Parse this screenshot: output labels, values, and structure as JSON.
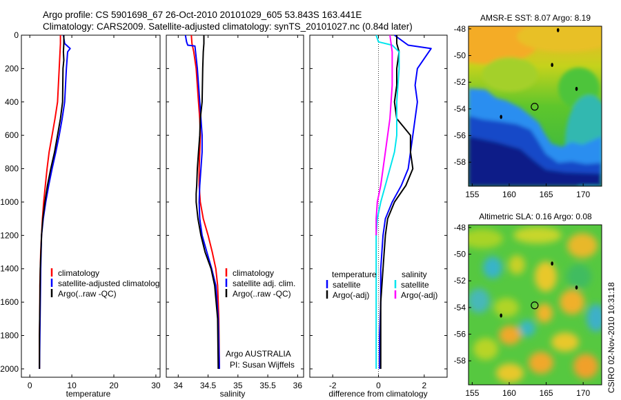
{
  "figure": {
    "title_line1": "Argo profile: CS 5901698_67 26-Oct-2010 20101029_605 53.843S 163.441E",
    "title_line2": "Climatology: CARS2009. Satellite-adjusted climatology: synTS_20101027.nc (0.84d later)",
    "side_label": "CSIRO 02-Nov-2010 10:31:18",
    "institution_line1": "Argo AUSTRALIA",
    "institution_line2": "PI: Susan Wijffels"
  },
  "colors": {
    "climatology": "#ff0000",
    "satellite": "#0000ff",
    "argo": "#000000",
    "sat_diff_salinity": "#00e5ee",
    "argo_diff_salinity": "#ff00ff"
  },
  "chart_data": [
    {
      "id": "temperature",
      "type": "line",
      "xlabel": "temperature",
      "ylabel": "",
      "xlim": [
        -2,
        31
      ],
      "ylim": [
        2050,
        0
      ],
      "xticks": [
        0,
        10,
        20,
        30
      ],
      "yticks": [
        0,
        200,
        400,
        600,
        800,
        1000,
        1200,
        1400,
        1600,
        1800,
        2000
      ],
      "legend": [
        {
          "label": "climatology",
          "color": "#ff0000"
        },
        {
          "label": "satellite-adjusted climatolog",
          "color": "#0000ff"
        },
        {
          "label": "Argo(..raw -QC)",
          "color": "#000000"
        }
      ],
      "series": [
        {
          "name": "climatology",
          "color": "#ff0000",
          "x": [
            7.3,
            7.3,
            7.2,
            7.0,
            6.6,
            6.0,
            5.3,
            4.6,
            4.1,
            3.7,
            3.3,
            3.0,
            2.8,
            2.6,
            2.5,
            2.4,
            2.4,
            2.3,
            2.3
          ],
          "y": [
            0,
            50,
            100,
            200,
            400,
            500,
            600,
            700,
            800,
            900,
            1000,
            1100,
            1200,
            1300,
            1400,
            1500,
            1600,
            1800,
            2000
          ]
        },
        {
          "name": "satellite-adjusted climatolog",
          "color": "#0000ff",
          "x": [
            8.0,
            8.3,
            9.6,
            9.0,
            8.7,
            8.3,
            7.7,
            7.0,
            6.2,
            5.3,
            4.5,
            3.8,
            3.2,
            2.8,
            2.6,
            2.5,
            2.4,
            2.3
          ],
          "y": [
            0,
            50,
            80,
            100,
            200,
            400,
            500,
            600,
            700,
            800,
            900,
            1000,
            1100,
            1200,
            1400,
            1600,
            1800,
            2000
          ]
        },
        {
          "name": "Argo(..raw -QC)",
          "color": "#000000",
          "x": [
            8.1,
            8.1,
            8.0,
            8.1,
            7.9,
            7.8,
            7.3,
            6.6,
            5.9,
            5.0,
            4.2,
            3.6,
            3.1,
            2.8,
            2.5,
            2.4,
            2.3,
            2.3
          ],
          "y": [
            0,
            50,
            100,
            150,
            200,
            400,
            500,
            600,
            700,
            800,
            900,
            1000,
            1100,
            1200,
            1400,
            1600,
            1800,
            2000
          ]
        }
      ]
    },
    {
      "id": "salinity",
      "type": "line",
      "xlabel": "salinity",
      "ylabel": "",
      "xlim": [
        33.8,
        36.1
      ],
      "ylim": [
        2050,
        0
      ],
      "xticks": [
        34,
        34.5,
        35,
        35.5,
        36
      ],
      "xtick_labels": [
        "34",
        "34.5",
        "35",
        "35.5",
        "36"
      ],
      "legend": [
        {
          "label": "climatology",
          "color": "#ff0000"
        },
        {
          "label": "satellite adj. clim.",
          "color": "#0000ff"
        },
        {
          "label": "Argo(..raw -QC)",
          "color": "#000000"
        }
      ],
      "series": [
        {
          "name": "climatology",
          "color": "#ff0000",
          "x": [
            34.22,
            34.23,
            34.26,
            34.3,
            34.34,
            34.36,
            34.37,
            34.36,
            34.35,
            34.35,
            34.37,
            34.42,
            34.5,
            34.57,
            34.63,
            34.66,
            34.68,
            34.69
          ],
          "y": [
            0,
            50,
            100,
            200,
            400,
            500,
            600,
            700,
            800,
            900,
            1000,
            1100,
            1200,
            1300,
            1400,
            1500,
            1700,
            2000
          ]
        },
        {
          "name": "satellite adj. clim.",
          "color": "#0000ff",
          "x": [
            34.12,
            34.14,
            34.16,
            34.28,
            34.32,
            34.36,
            34.38,
            34.4,
            34.4,
            34.38,
            34.36,
            34.35,
            34.36,
            34.4,
            34.48,
            34.56,
            34.63,
            34.67,
            34.69
          ],
          "y": [
            0,
            40,
            60,
            65,
            200,
            400,
            500,
            600,
            700,
            800,
            900,
            1000,
            1100,
            1200,
            1300,
            1400,
            1500,
            1700,
            2000
          ]
        },
        {
          "name": "Argo(..raw -QC)",
          "color": "#000000",
          "x": [
            34.43,
            34.43,
            34.42,
            34.41,
            34.4,
            34.37,
            34.36,
            34.34,
            34.32,
            34.31,
            34.3,
            34.3,
            34.33,
            34.38,
            34.45,
            34.55,
            34.61,
            34.66,
            34.67
          ],
          "y": [
            0,
            50,
            100,
            200,
            400,
            500,
            600,
            700,
            800,
            900,
            950,
            1000,
            1100,
            1200,
            1300,
            1400,
            1500,
            1700,
            2000
          ]
        }
      ]
    },
    {
      "id": "difference",
      "type": "line",
      "xlabel": "difference from climatology",
      "ylabel": "",
      "xlim": [
        -3,
        3
      ],
      "ylim": [
        2050,
        0
      ],
      "xticks": [
        -2,
        0,
        2
      ],
      "xtick_labels": [
        "-2",
        "0",
        "2"
      ],
      "legend_left_title": "temperature",
      "legend_right_title": "salinity",
      "legend": [
        {
          "label": "satellite",
          "color": "#0000ff",
          "column": "left"
        },
        {
          "label": "Argo(-adj)",
          "color": "#000000",
          "column": "left"
        },
        {
          "label": "satellite",
          "color": "#00e5ee",
          "column": "right"
        },
        {
          "label": "Argo(-adj)",
          "color": "#ff00ff",
          "column": "right"
        }
      ],
      "series": [
        {
          "name": "temperature satellite",
          "color": "#0000ff",
          "x": [
            0.7,
            1.0,
            1.3,
            2.3,
            2.2,
            1.7,
            1.6,
            1.7,
            1.6,
            1.5,
            1.3,
            1.0,
            0.6,
            0.3,
            0.2,
            0.1,
            0.1,
            0.05,
            0.05
          ],
          "y": [
            0,
            30,
            60,
            80,
            100,
            200,
            300,
            400,
            500,
            600,
            800,
            900,
            1000,
            1100,
            1200,
            1400,
            1600,
            1800,
            2000
          ]
        },
        {
          "name": "temperature Argo(-adj)",
          "color": "#000000",
          "x": [
            0.8,
            0.8,
            0.9,
            0.8,
            0.8,
            0.7,
            0.8,
            1.1,
            1.4,
            1.4,
            1.5,
            1.2,
            0.7,
            0.4,
            0.3,
            0.2,
            0.1,
            0.1,
            0.1
          ],
          "y": [
            0,
            50,
            100,
            200,
            300,
            400,
            500,
            550,
            600,
            700,
            800,
            900,
            1000,
            1100,
            1200,
            1400,
            1600,
            1800,
            2000
          ]
        },
        {
          "name": "salinity satellite",
          "color": "#00e5ee",
          "x": [
            -0.1,
            0.0,
            0.6,
            0.9,
            0.9,
            0.8,
            0.8,
            0.7,
            0.5,
            0.3,
            0.1,
            -0.05,
            -0.1,
            -0.1,
            -0.1,
            -0.1
          ],
          "y": [
            0,
            40,
            60,
            100,
            200,
            400,
            600,
            700,
            800,
            900,
            1000,
            1100,
            1200,
            1400,
            1700,
            2000
          ]
        },
        {
          "name": "salinity Argo(-adj)",
          "color": "#ff00ff",
          "x": [
            0.5,
            0.6,
            0.6,
            0.5,
            0.3,
            0.1,
            -0.05,
            -0.1,
            -0.1
          ],
          "y": [
            0,
            100,
            300,
            500,
            700,
            900,
            1000,
            1100,
            1200
          ]
        }
      ]
    },
    {
      "id": "sst_map",
      "type": "heatmap",
      "title": "AMSR-E SST: 8.07 Argo: 8.19",
      "xlim": [
        154.5,
        172.5
      ],
      "ylim": [
        -59.8,
        -47.8
      ],
      "xticks": [
        155,
        160,
        165,
        170
      ],
      "yticks": [
        -48,
        -50,
        -52,
        -54,
        -56,
        -58
      ],
      "ytick_labels": [
        "-48",
        "-50",
        "-52",
        "-54",
        "-56",
        "-58"
      ],
      "markers": [
        {
          "lon": 163.44,
          "lat": -53.84,
          "kind": "circle"
        },
        {
          "lon": 165.8,
          "lat": -50.7,
          "kind": "island"
        },
        {
          "lon": 169.1,
          "lat": -52.5,
          "kind": "island"
        },
        {
          "lon": 158.9,
          "lat": -54.6,
          "kind": "island"
        },
        {
          "lon": 166.6,
          "lat": -48.1,
          "kind": "island"
        }
      ]
    },
    {
      "id": "sla_map",
      "type": "heatmap",
      "title": "Altimetric SLA: 0.16 Argo: 0.08",
      "xlim": [
        154.5,
        172.5
      ],
      "ylim": [
        -59.8,
        -47.8
      ],
      "xticks": [
        155,
        160,
        165,
        170
      ],
      "yticks": [
        -48,
        -50,
        -52,
        -54,
        -56,
        -58
      ],
      "ytick_labels": [
        "-48",
        "-50",
        "-52",
        "-54",
        "-56",
        "-58"
      ],
      "markers": [
        {
          "lon": 163.44,
          "lat": -53.84,
          "kind": "circle"
        },
        {
          "lon": 165.8,
          "lat": -50.7,
          "kind": "island"
        },
        {
          "lon": 169.1,
          "lat": -52.5,
          "kind": "island"
        },
        {
          "lon": 158.9,
          "lat": -54.6,
          "kind": "island"
        }
      ]
    }
  ]
}
